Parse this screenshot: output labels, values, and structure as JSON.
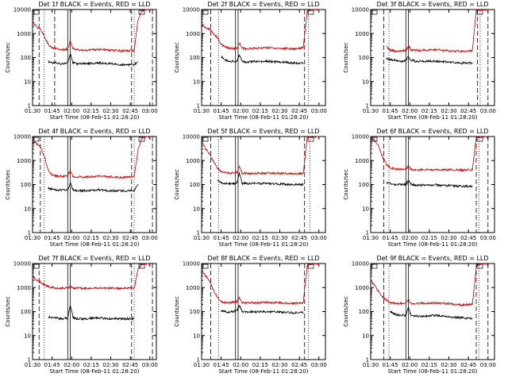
{
  "figure": {
    "panel_template": {
      "ylabel": "Counts/sec",
      "xlabel": "Start Time (08-Feb-11 01:28:20)",
      "yticks": [
        "1",
        "10",
        "100",
        "1000",
        "10000"
      ],
      "xticks": [
        "01:30",
        "01:45",
        "02:00",
        "02:15",
        "02:30",
        "02:45",
        "03:00"
      ]
    }
  },
  "colors": {
    "events": "#000000",
    "lld": "#cc0000",
    "axes": "#000000"
  },
  "chart_data": [
    {
      "type": "line",
      "title": "Det 1f BLACK = Events, RED = LLD",
      "ylim": [
        1,
        10000
      ],
      "yscale": "log",
      "xlim": [
        "01:30",
        "03:05"
      ],
      "grid": false,
      "x": [
        "01:30",
        "01:33",
        "01:36",
        "01:39",
        "01:42",
        "01:45",
        "01:48",
        "01:51",
        "01:54",
        "01:57",
        "01:59",
        "02:01",
        "02:04",
        "02:10",
        "02:20",
        "02:30",
        "02:40",
        "02:48",
        "02:51",
        "02:54",
        "02:57",
        "03:00"
      ],
      "series": [
        {
          "name": "Events",
          "values": [
            null,
            null,
            null,
            null,
            70,
            60,
            60,
            55,
            55,
            60,
            150,
            60,
            55,
            55,
            60,
            55,
            50,
            50,
            70,
            null,
            null,
            null
          ]
        },
        {
          "name": "LLD",
          "values": [
            3000,
            2000,
            1500,
            800,
            350,
            250,
            230,
            220,
            220,
            230,
            500,
            230,
            210,
            200,
            220,
            200,
            190,
            200,
            4000,
            9000,
            10000,
            10000
          ]
        }
      ],
      "vlines_dashed": [
        "01:35",
        "01:47",
        "02:46",
        "03:02"
      ],
      "vlines_dotted": [
        "01:39",
        "02:48"
      ],
      "vlines_solid": [
        "01:57",
        "01:59"
      ]
    },
    {
      "type": "line",
      "title": "Det 2f BLACK = Events, RED = LLD",
      "ylim": [
        1,
        10000
      ],
      "yscale": "log",
      "xlim": [
        "01:30",
        "03:05"
      ],
      "grid": false,
      "x": [
        "01:30",
        "01:33",
        "01:36",
        "01:39",
        "01:42",
        "01:45",
        "01:48",
        "01:51",
        "01:54",
        "01:57",
        "01:59",
        "02:01",
        "02:04",
        "02:10",
        "02:20",
        "02:30",
        "02:40",
        "02:48",
        "02:51",
        "02:54",
        "02:57",
        "03:00"
      ],
      "series": [
        {
          "name": "Events",
          "values": [
            null,
            null,
            null,
            null,
            null,
            110,
            80,
            70,
            70,
            70,
            130,
            70,
            65,
            70,
            70,
            65,
            60,
            60,
            null,
            null,
            null,
            null
          ]
        },
        {
          "name": "LLD",
          "values": [
            2500,
            1800,
            1500,
            1000,
            700,
            350,
            270,
            250,
            240,
            240,
            400,
            250,
            230,
            240,
            260,
            240,
            230,
            260,
            8000,
            10000,
            10000,
            10000
          ]
        }
      ],
      "vlines_dashed": [
        "01:37",
        "02:49"
      ],
      "vlines_dotted": [
        "01:43",
        "02:52"
      ],
      "vlines_solid": [
        "01:56",
        "01:58"
      ]
    },
    {
      "type": "line",
      "title": "Det 3f BLACK = Events, RED = LLD",
      "ylim": [
        1,
        10000
      ],
      "yscale": "log",
      "xlim": [
        "01:30",
        "03:05"
      ],
      "grid": false,
      "x": [
        "01:30",
        "01:33",
        "01:36",
        "01:39",
        "01:42",
        "01:45",
        "01:48",
        "01:51",
        "01:54",
        "01:57",
        "01:59",
        "02:01",
        "02:04",
        "02:10",
        "02:20",
        "02:30",
        "02:40",
        "02:48",
        "02:51",
        "02:54",
        "02:57",
        "03:00"
      ],
      "series": [
        {
          "name": "Events",
          "values": [
            null,
            null,
            null,
            null,
            90,
            80,
            80,
            70,
            70,
            80,
            110,
            80,
            70,
            70,
            70,
            65,
            60,
            60,
            null,
            null,
            null,
            null
          ]
        },
        {
          "name": "LLD",
          "values": [
            null,
            null,
            null,
            null,
            300,
            200,
            190,
            180,
            190,
            200,
            300,
            210,
            200,
            200,
            210,
            190,
            180,
            190,
            9000,
            10000,
            10000,
            10000
          ]
        }
      ],
      "vlines_dashed": [
        "01:40",
        "02:52",
        "03:00"
      ],
      "vlines_dotted": [
        "01:44",
        "02:54"
      ],
      "vlines_solid": [
        "01:57",
        "01:59"
      ]
    },
    {
      "type": "line",
      "title": "Det 4f BLACK = Events, RED = LLD",
      "ylim": [
        1,
        10000
      ],
      "yscale": "log",
      "xlim": [
        "01:30",
        "03:05"
      ],
      "grid": false,
      "x": [
        "01:30",
        "01:33",
        "01:36",
        "01:39",
        "01:42",
        "01:45",
        "01:48",
        "01:51",
        "01:54",
        "01:57",
        "01:59",
        "02:01",
        "02:04",
        "02:10",
        "02:20",
        "02:30",
        "02:40",
        "02:48",
        "02:51",
        "02:54",
        "02:57",
        "03:00"
      ],
      "series": [
        {
          "name": "Events",
          "values": [
            null,
            null,
            null,
            null,
            70,
            65,
            60,
            60,
            60,
            60,
            120,
            60,
            55,
            55,
            60,
            55,
            55,
            55,
            100,
            null,
            null,
            null
          ]
        },
        {
          "name": "LLD",
          "values": [
            6000,
            5000,
            4000,
            1500,
            400,
            250,
            230,
            220,
            220,
            230,
            400,
            220,
            210,
            210,
            220,
            210,
            200,
            210,
            3000,
            9000,
            10000,
            10000
          ]
        }
      ],
      "vlines_dashed": [
        "01:36",
        "02:46",
        "03:02"
      ],
      "vlines_dotted": [
        "01:39",
        "02:48"
      ],
      "vlines_solid": [
        "01:57",
        "01:59"
      ]
    },
    {
      "type": "line",
      "title": "Det 5f BLACK = Events, RED = LLD",
      "ylim": [
        1,
        10000
      ],
      "yscale": "log",
      "xlim": [
        "01:30",
        "03:05"
      ],
      "grid": false,
      "x": [
        "01:30",
        "01:33",
        "01:36",
        "01:39",
        "01:42",
        "01:45",
        "01:48",
        "01:51",
        "01:54",
        "01:57",
        "01:59",
        "02:01",
        "02:04",
        "02:10",
        "02:20",
        "02:30",
        "02:40",
        "02:48",
        "02:51",
        "02:54",
        "02:57",
        "03:00"
      ],
      "series": [
        {
          "name": "Events",
          "values": [
            null,
            null,
            null,
            null,
            150,
            120,
            110,
            110,
            110,
            110,
            300,
            110,
            110,
            110,
            110,
            105,
            100,
            100,
            null,
            null,
            null,
            null
          ]
        },
        {
          "name": "LLD",
          "values": [
            6000,
            3000,
            1800,
            1000,
            500,
            350,
            320,
            300,
            300,
            310,
            600,
            300,
            290,
            290,
            300,
            290,
            280,
            290,
            9000,
            10000,
            10000,
            10000
          ]
        }
      ],
      "vlines_dashed": [
        "01:37",
        "02:49"
      ],
      "vlines_dotted": [
        "01:43",
        "02:53"
      ],
      "vlines_solid": [
        "01:56",
        "01:58"
      ]
    },
    {
      "type": "line",
      "title": "Det 6f BLACK = Events, RED = LLD",
      "ylim": [
        1,
        10000
      ],
      "yscale": "log",
      "xlim": [
        "01:30",
        "03:05"
      ],
      "grid": false,
      "x": [
        "01:30",
        "01:33",
        "01:36",
        "01:39",
        "01:42",
        "01:45",
        "01:48",
        "01:51",
        "01:54",
        "01:57",
        "01:59",
        "02:01",
        "02:04",
        "02:10",
        "02:20",
        "02:30",
        "02:40",
        "02:48",
        "02:51",
        "02:54",
        "02:57",
        "03:00"
      ],
      "series": [
        {
          "name": "Events",
          "values": [
            null,
            null,
            null,
            null,
            120,
            110,
            100,
            100,
            100,
            100,
            150,
            100,
            95,
            95,
            95,
            90,
            85,
            85,
            null,
            null,
            null,
            null
          ]
        },
        {
          "name": "LLD",
          "values": [
            10000,
            7000,
            4000,
            1500,
            700,
            500,
            450,
            420,
            420,
            430,
            600,
            420,
            410,
            410,
            420,
            410,
            400,
            410,
            9000,
            10000,
            10000,
            10000
          ]
        }
      ],
      "vlines_dashed": [
        "01:40",
        "02:51",
        "03:00"
      ],
      "vlines_dotted": [
        "01:44",
        "02:53"
      ],
      "vlines_solid": [
        "01:57",
        "01:59"
      ]
    },
    {
      "type": "line",
      "title": "Det 7f BLACK = Events, RED = LLD",
      "ylim": [
        1,
        10000
      ],
      "yscale": "log",
      "xlim": [
        "01:30",
        "03:05"
      ],
      "grid": false,
      "x": [
        "01:30",
        "01:33",
        "01:36",
        "01:39",
        "01:42",
        "01:45",
        "01:48",
        "01:51",
        "01:54",
        "01:57",
        "01:59",
        "02:01",
        "02:04",
        "02:10",
        "02:20",
        "02:30",
        "02:40",
        "02:48",
        "02:51",
        "02:54",
        "02:57",
        "03:00"
      ],
      "series": [
        {
          "name": "Events",
          "values": [
            null,
            null,
            null,
            null,
            60,
            55,
            55,
            50,
            50,
            55,
            200,
            55,
            50,
            50,
            55,
            50,
            50,
            50,
            null,
            null,
            null,
            null
          ]
        },
        {
          "name": "LLD",
          "values": [
            3000,
            2000,
            1700,
            1300,
            1100,
            1000,
            950,
            950,
            950,
            960,
            1200,
            960,
            940,
            940,
            950,
            940,
            930,
            950,
            6000,
            10000,
            10000,
            10000
          ]
        }
      ],
      "vlines_dashed": [
        "01:35",
        "02:46",
        "03:02"
      ],
      "vlines_dotted": [
        "01:39",
        "02:48"
      ],
      "vlines_solid": [
        "01:57",
        "01:59"
      ]
    },
    {
      "type": "line",
      "title": "Det 8f BLACK = Events, RED = LLD",
      "ylim": [
        1,
        10000
      ],
      "yscale": "log",
      "xlim": [
        "01:30",
        "03:05"
      ],
      "grid": false,
      "x": [
        "01:30",
        "01:33",
        "01:36",
        "01:39",
        "01:42",
        "01:45",
        "01:48",
        "01:51",
        "01:54",
        "01:57",
        "01:59",
        "02:01",
        "02:04",
        "02:10",
        "02:20",
        "02:30",
        "02:40",
        "02:48",
        "02:51",
        "02:54",
        "02:57",
        "03:00"
      ],
      "series": [
        {
          "name": "Events",
          "values": [
            null,
            null,
            null,
            null,
            null,
            110,
            100,
            95,
            100,
            110,
            180,
            100,
            95,
            95,
            100,
            95,
            90,
            90,
            null,
            null,
            null,
            null
          ]
        },
        {
          "name": "LLD",
          "values": [
            5000,
            3000,
            2000,
            800,
            400,
            260,
            240,
            230,
            240,
            250,
            400,
            240,
            230,
            230,
            240,
            230,
            220,
            240,
            8000,
            10000,
            10000,
            10000
          ]
        }
      ],
      "vlines_dashed": [
        "01:37",
        "02:49"
      ],
      "vlines_dotted": [
        "01:43",
        "02:52"
      ],
      "vlines_solid": [
        "01:56",
        "01:58"
      ]
    },
    {
      "type": "line",
      "title": "Det 9f BLACK = Events, RED = LLD",
      "ylim": [
        1,
        10000
      ],
      "yscale": "log",
      "xlim": [
        "01:30",
        "03:05"
      ],
      "grid": false,
      "x": [
        "01:30",
        "01:33",
        "01:36",
        "01:39",
        "01:42",
        "01:45",
        "01:48",
        "01:51",
        "01:54",
        "01:57",
        "01:59",
        "02:01",
        "02:04",
        "02:10",
        "02:20",
        "02:30",
        "02:40",
        "02:48",
        "02:51",
        "02:54",
        "02:57",
        "03:00"
      ],
      "series": [
        {
          "name": "Events",
          "values": [
            null,
            null,
            null,
            null,
            null,
            100,
            80,
            70,
            70,
            70,
            150,
            70,
            65,
            65,
            70,
            60,
            55,
            50,
            null,
            null,
            null,
            null
          ]
        },
        {
          "name": "LLD",
          "values": [
            2000,
            1200,
            700,
            400,
            300,
            230,
            220,
            220,
            220,
            230,
            300,
            220,
            210,
            220,
            230,
            210,
            190,
            200,
            7000,
            10000,
            10000,
            10000
          ]
        }
      ],
      "vlines_dashed": [
        "01:40",
        "02:51",
        "03:00"
      ],
      "vlines_dotted": [
        "01:44",
        "02:53"
      ],
      "vlines_solid": [
        "01:57",
        "01:59"
      ]
    }
  ]
}
